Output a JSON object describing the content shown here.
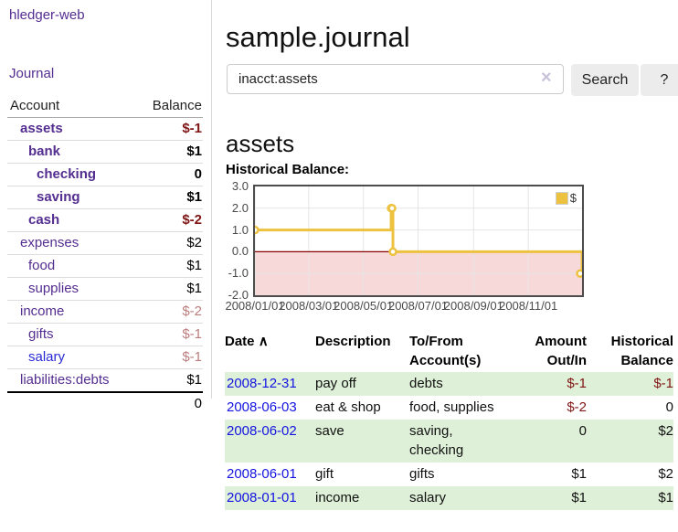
{
  "sidebar": {
    "app_title": "hledger-web",
    "journal_label": "Journal",
    "accounts": {
      "header": {
        "account": "Account",
        "balance": "Balance"
      },
      "rows": [
        {
          "name": "assets",
          "balance": "$-1"
        },
        {
          "name": "bank",
          "balance": "$1"
        },
        {
          "name": "checking",
          "balance": "0"
        },
        {
          "name": "saving",
          "balance": "$1"
        },
        {
          "name": "cash",
          "balance": "$-2"
        },
        {
          "name": "expenses",
          "balance": "$2"
        },
        {
          "name": "food",
          "balance": "$1"
        },
        {
          "name": "supplies",
          "balance": "$1"
        },
        {
          "name": "income",
          "balance": "$-2"
        },
        {
          "name": "gifts",
          "balance": "$-1"
        },
        {
          "name": "salary",
          "balance": "$-1"
        },
        {
          "name": "liabilities:debts",
          "balance": "$1"
        }
      ],
      "total": "0"
    }
  },
  "header": {
    "title": "sample.journal"
  },
  "search": {
    "query": "inacct:assets",
    "clear_icon": "×",
    "button_label": "Search",
    "help_label": "?"
  },
  "account_page": {
    "heading": "assets",
    "chart_label": "Historical Balance:"
  },
  "chart_data": {
    "type": "line",
    "style": "step",
    "x_range": [
      "2008-01-01",
      "2008-12-31"
    ],
    "ylim": [
      -2,
      3
    ],
    "yticks": [
      3.0,
      2.0,
      1.0,
      0.0,
      -1.0,
      -2.0
    ],
    "xtick_labels": [
      "2008/01/01",
      "2008/03/01",
      "2008/05/01",
      "2008/07/01",
      "2008/09/01",
      "2008/11/01"
    ],
    "series": [
      {
        "name": "$",
        "color": "#edc240",
        "points": [
          {
            "date": "2008-01-01",
            "value": 1
          },
          {
            "date": "2008-06-01",
            "value": 2
          },
          {
            "date": "2008-06-02",
            "value": 2
          },
          {
            "date": "2008-06-03",
            "value": 0
          },
          {
            "date": "2008-12-31",
            "value": -1
          }
        ]
      }
    ],
    "negative_region_fill": "#f8d9d9",
    "zero_line_color": "#8b0000",
    "grid_color": "#e5e5e5",
    "legend_position": "top-right"
  },
  "register": {
    "columns": {
      "date": "Date",
      "sort_indicator": "∧",
      "description": "Description",
      "account_line1": "To/From",
      "account_line2": "Account(s)",
      "amount_line1": "Amount",
      "amount_line2": "Out/In",
      "balance_line1": "Historical",
      "balance_line2": "Balance"
    },
    "rows": [
      {
        "date": "2008-12-31",
        "description": "pay off",
        "accounts": "debts",
        "amount": "$-1",
        "balance": "$-1"
      },
      {
        "date": "2008-06-03",
        "description": "eat & shop",
        "accounts": "food, supplies",
        "amount": "$-2",
        "balance": "0"
      },
      {
        "date": "2008-06-02",
        "description": "save",
        "accounts": "saving, checking",
        "amount": "0",
        "balance": "$2"
      },
      {
        "date": "2008-06-01",
        "description": "gift",
        "accounts": "gifts",
        "amount": "$1",
        "balance": "$2"
      },
      {
        "date": "2008-01-01",
        "description": "income",
        "accounts": "salary",
        "amount": "$1",
        "balance": "$1"
      }
    ]
  }
}
